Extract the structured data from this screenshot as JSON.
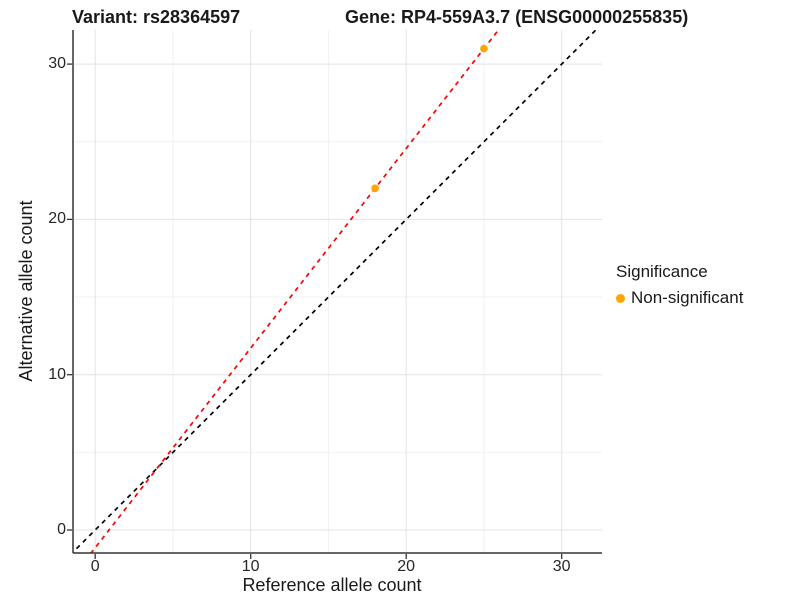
{
  "chart_data": {
    "type": "scatter",
    "titles": {
      "variant": "Variant: rs28364597",
      "gene": "Gene: RP4-559A3.7 (ENSG00000255835)"
    },
    "xlabel": "Reference allele count",
    "ylabel": "Alternative allele count",
    "x_major_ticks": [
      0,
      10,
      20,
      30
    ],
    "x_minor_ticks": [
      5,
      15,
      25
    ],
    "y_major_ticks": [
      0,
      10,
      20,
      30
    ],
    "y_minor_ticks": [
      5,
      15,
      25
    ],
    "xlim": [
      -1.43,
      32.6
    ],
    "ylim": [
      -1.48,
      32.2
    ],
    "grid": true,
    "points": [
      {
        "x": 18,
        "y": 22,
        "significance": "Non-significant"
      },
      {
        "x": 25,
        "y": 31,
        "significance": "Non-significant"
      }
    ],
    "lines": [
      {
        "name": "identity-line",
        "slope": 1,
        "intercept": 0,
        "color": "#000000",
        "style": "dashed"
      },
      {
        "name": "allelic-ratio-line",
        "slope": 1.2857,
        "intercept": -1.143,
        "color": "#FF0000",
        "style": "dashed"
      }
    ],
    "legend": {
      "title": "Significance",
      "position": "right",
      "items": [
        {
          "label": "Non-significant",
          "color": "#FFA500"
        }
      ]
    },
    "colors": {
      "point": "#FFA500",
      "background": "#FFFFFF",
      "grid_major": "#E3E3E3",
      "grid_minor": "#F1F1F1",
      "axis": "#333333",
      "tick_text": "#262626"
    }
  }
}
